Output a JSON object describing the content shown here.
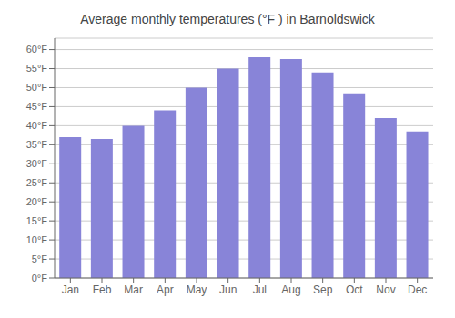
{
  "chart_data": {
    "type": "bar",
    "title": "Average monthly temperatures (°F ) in Barnoldswick",
    "categories": [
      "Jan",
      "Feb",
      "Mar",
      "Apr",
      "May",
      "Jun",
      "Jul",
      "Aug",
      "Sep",
      "Oct",
      "Nov",
      "Dec"
    ],
    "values": [
      37,
      36.5,
      40,
      44,
      50,
      55,
      58,
      57.5,
      54,
      48.5,
      42,
      38.5
    ],
    "ylim": [
      0,
      63
    ],
    "yticks": [
      {
        "value": 0,
        "label": "0°F"
      },
      {
        "value": 5,
        "label": "5°F"
      },
      {
        "value": 10,
        "label": "10°F"
      },
      {
        "value": 15,
        "label": "15°F"
      },
      {
        "value": 20,
        "label": "20°F"
      },
      {
        "value": 25,
        "label": "25°F"
      },
      {
        "value": 30,
        "label": "30°F"
      },
      {
        "value": 35,
        "label": "35°F"
      },
      {
        "value": 40,
        "label": "40°F"
      },
      {
        "value": 45,
        "label": "45°F"
      },
      {
        "value": 50,
        "label": "50°F"
      },
      {
        "value": 55,
        "label": "55°F"
      },
      {
        "value": 60,
        "label": "60°F"
      }
    ],
    "grid": true
  }
}
